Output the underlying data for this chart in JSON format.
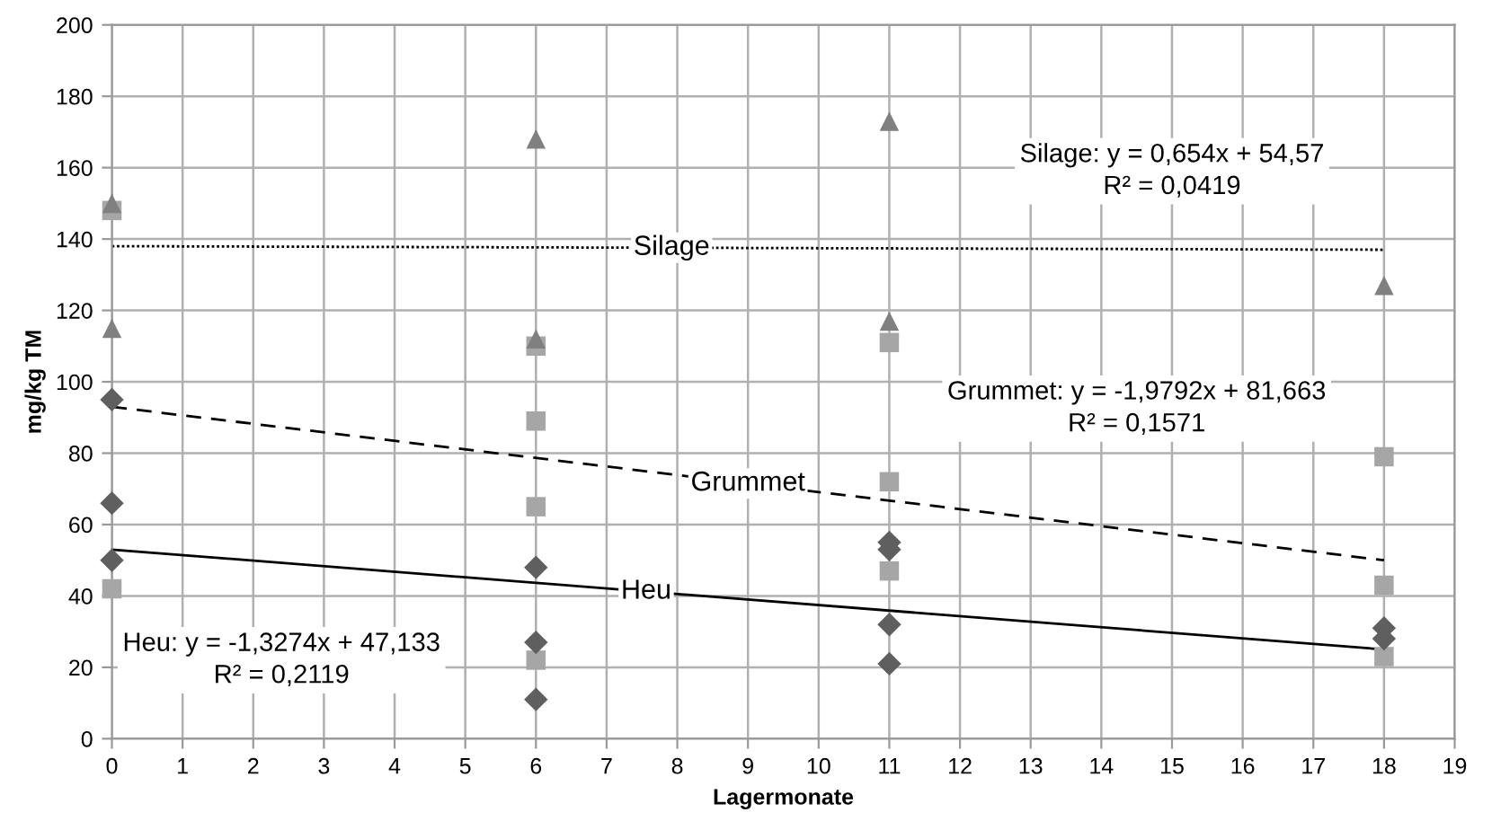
{
  "chart_data": {
    "type": "scatter",
    "xlabel": "Lagermonate",
    "ylabel": "mg/kg TM",
    "xlim": [
      0,
      19
    ],
    "xticks": [
      0,
      1,
      2,
      3,
      4,
      5,
      6,
      7,
      8,
      9,
      10,
      11,
      12,
      13,
      14,
      15,
      16,
      17,
      18,
      19
    ],
    "ylim": [
      0,
      200
    ],
    "yticks": [
      0,
      20,
      40,
      60,
      80,
      100,
      120,
      140,
      160,
      180,
      200
    ],
    "grid": true,
    "series": [
      {
        "marker": "triangle",
        "color": "#808080",
        "x": [
          0,
          0,
          6,
          6,
          11,
          11,
          18
        ],
        "values": [
          150,
          115,
          168,
          112,
          173,
          117,
          127
        ]
      },
      {
        "marker": "square",
        "color": "#a6a6a6",
        "x": [
          0,
          0,
          6,
          6,
          6,
          6,
          11,
          11,
          11,
          18,
          18,
          18
        ],
        "values": [
          148,
          42,
          110,
          89,
          65,
          22,
          111,
          72,
          47,
          79,
          43,
          23
        ]
      },
      {
        "marker": "diamond",
        "color": "#5f5f5f",
        "x": [
          0,
          0,
          0,
          6,
          6,
          6,
          11,
          11,
          11,
          11,
          18,
          18
        ],
        "values": [
          95,
          66,
          50,
          48,
          27,
          11,
          55,
          53,
          32,
          21,
          31,
          28
        ]
      },
      {
        "type": "line",
        "name": "Silage",
        "color": "#000000",
        "line_style": "dotted",
        "marker": "none",
        "x": [
          0,
          18
        ],
        "values": [
          138,
          137
        ]
      },
      {
        "type": "line",
        "name": "Grummet",
        "color": "#000000",
        "line_style": "dashed",
        "marker": "none",
        "x": [
          0,
          18
        ],
        "values": [
          93,
          50
        ]
      },
      {
        "type": "line",
        "name": "Heu",
        "color": "#000000",
        "line_style": "solid",
        "marker": "none",
        "x": [
          0,
          18
        ],
        "values": [
          53,
          25
        ]
      }
    ],
    "annotations": [
      "Silage: y = 0,654x + 54,57\nR² = 0,0419",
      "Grummet: y = -1,9792x + 81,663\nR² = 0,1571",
      "Heu: y = -1,3274x + 47,133\nR² = 0,2119"
    ]
  }
}
